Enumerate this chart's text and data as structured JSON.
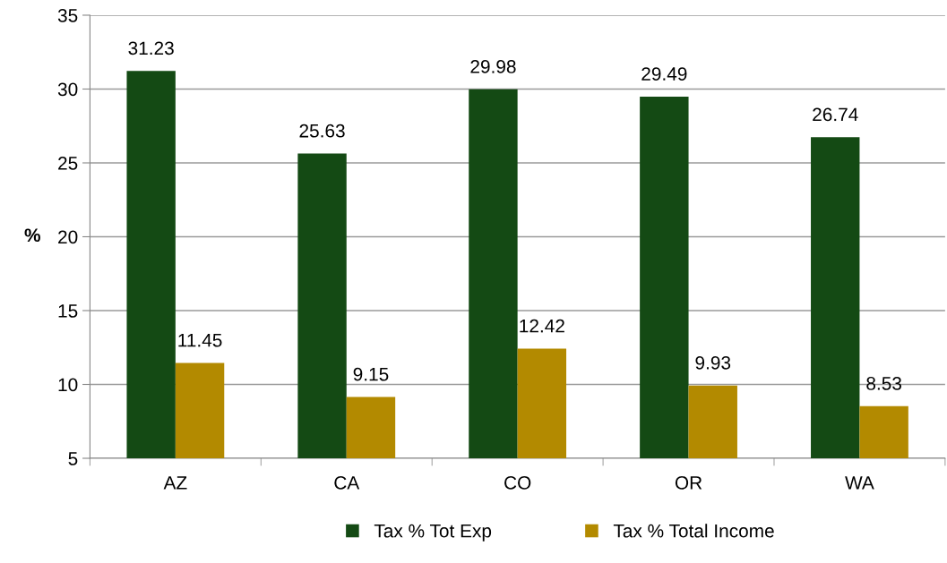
{
  "chart_data": {
    "type": "bar",
    "ylabel": "%",
    "categories": [
      "AZ",
      "CA",
      "CO",
      "OR",
      "WA"
    ],
    "series": [
      {
        "name": "Tax % Tot Exp",
        "color": "#144a14",
        "values": [
          31.23,
          25.63,
          29.98,
          29.49,
          26.74
        ]
      },
      {
        "name": "Tax % Total Income",
        "color": "#b38a00",
        "values": [
          11.45,
          9.15,
          12.42,
          9.93,
          8.53
        ]
      }
    ],
    "ylim": [
      5,
      35
    ],
    "yticks": [
      5,
      10,
      15,
      20,
      25,
      30,
      35
    ],
    "grid": "y",
    "legend": "bottom",
    "data_labels": true
  }
}
